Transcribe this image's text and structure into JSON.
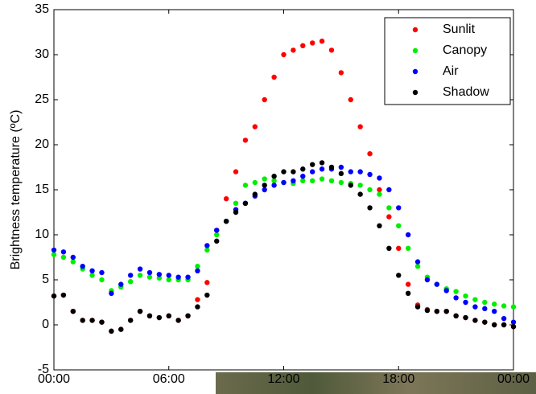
{
  "chart_data": {
    "type": "scatter",
    "y_label": "Brightness temperature (ºC)",
    "x": [
      0,
      0.5,
      1,
      1.5,
      2,
      2.5,
      3,
      3.5,
      4,
      4.5,
      5,
      5.5,
      6,
      6.5,
      7,
      7.5,
      8,
      8.5,
      9,
      9.5,
      10,
      10.5,
      11,
      11.5,
      12,
      12.5,
      13,
      13.5,
      14,
      14.5,
      15,
      15.5,
      16,
      16.5,
      17,
      17.5,
      18,
      18.5,
      19,
      19.5,
      20,
      20.5,
      21,
      21.5,
      22,
      22.5,
      23,
      23.5,
      24
    ],
    "xlim": [
      0,
      24
    ],
    "xticks": [
      {
        "value": 0,
        "label": "00:00"
      },
      {
        "value": 6,
        "label": "06:00"
      },
      {
        "value": 12,
        "label": "12:00"
      },
      {
        "value": 18,
        "label": "18:00"
      },
      {
        "value": 24,
        "label": "00:00"
      }
    ],
    "ylim": [
      -5,
      35
    ],
    "yticks": [
      -5,
      0,
      5,
      10,
      15,
      20,
      25,
      30,
      35
    ],
    "grid": false,
    "legend": "upper right",
    "series": [
      {
        "name": "Sunlit",
        "color": "#ff0000",
        "values": [
          3.2,
          3.3,
          1.5,
          0.5,
          0.5,
          0.3,
          -0.7,
          -0.5,
          0.5,
          1.5,
          1.0,
          0.8,
          1.0,
          0.5,
          1.0,
          2.8,
          4.7,
          10.5,
          14,
          17,
          20.5,
          22,
          25,
          27.5,
          30,
          30.5,
          31,
          31.3,
          31.5,
          30.5,
          28,
          25,
          22,
          19,
          15,
          12,
          8.5,
          4.5,
          2.2,
          1.7,
          1.5,
          1.5,
          1.0,
          0.8,
          0.5,
          0.3,
          0.0,
          0.0,
          -0.2
        ]
      },
      {
        "name": "Canopy",
        "color": "#00ee00",
        "values": [
          7.8,
          7.5,
          7,
          6.2,
          5.5,
          5,
          3.8,
          4.2,
          4.8,
          5.5,
          5.3,
          5.2,
          5.0,
          5,
          5,
          6.5,
          8.3,
          10,
          11.5,
          13.5,
          15.5,
          15.8,
          16.2,
          16,
          15.8,
          15.7,
          16,
          16,
          16.2,
          16,
          15.8,
          15.7,
          15.5,
          15,
          14.5,
          13,
          11,
          8.5,
          6.5,
          5.3,
          4.5,
          4,
          3.7,
          3.2,
          2.8,
          2.5,
          2.3,
          2.1,
          2.0
        ]
      },
      {
        "name": "Air",
        "color": "#0000ff",
        "values": [
          8.3,
          8.1,
          7.5,
          6.5,
          6.0,
          5.8,
          3.5,
          4.5,
          5.5,
          6.2,
          5.8,
          5.6,
          5.5,
          5.3,
          5.3,
          6,
          8.8,
          10.5,
          11.5,
          12.8,
          13.5,
          14.3,
          15,
          15.5,
          15.8,
          16,
          16.5,
          17,
          17.3,
          17.3,
          17.5,
          17,
          17,
          16.7,
          16.3,
          15,
          13,
          10,
          7,
          5,
          4.5,
          3.8,
          3,
          2.5,
          2,
          1.8,
          1.5,
          0.7,
          0.3
        ]
      },
      {
        "name": "Shadow",
        "color": "#000000",
        "values": [
          3.2,
          3.3,
          1.5,
          0.5,
          0.5,
          0.3,
          -0.7,
          -0.5,
          0.5,
          1.5,
          1.0,
          0.8,
          1.0,
          0.5,
          1.0,
          2.0,
          3.3,
          9.3,
          11.5,
          12.5,
          13.5,
          14.5,
          15.5,
          16.5,
          17,
          17,
          17.3,
          17.8,
          18,
          17.5,
          16.8,
          15.5,
          14.5,
          13,
          11,
          8.5,
          5.5,
          3.5,
          2,
          1.6,
          1.5,
          1.5,
          1.0,
          0.8,
          0.5,
          0.3,
          0.0,
          0.0,
          -0.2
        ]
      }
    ]
  }
}
